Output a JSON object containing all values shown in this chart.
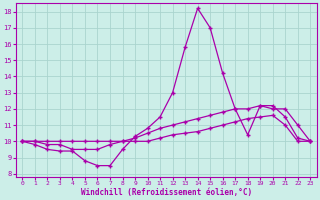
{
  "title": "",
  "xlabel": "Windchill (Refroidissement éolien,°C)",
  "background_color": "#cceee8",
  "grid_color": "#aad4ce",
  "line_color": "#aa00aa",
  "x_ticks": [
    0,
    1,
    2,
    3,
    4,
    5,
    6,
    7,
    8,
    9,
    10,
    11,
    12,
    13,
    14,
    15,
    16,
    17,
    18,
    19,
    20,
    21,
    22,
    23
  ],
  "y_ticks": [
    8,
    9,
    10,
    11,
    12,
    13,
    14,
    15,
    16,
    17,
    18
  ],
  "ylim": [
    7.8,
    18.5
  ],
  "xlim": [
    -0.5,
    23.5
  ],
  "series1_x": [
    0,
    1,
    2,
    3,
    4,
    5,
    6,
    7,
    8,
    9,
    10,
    11,
    12,
    13,
    14,
    15,
    16,
    17,
    18,
    19,
    20,
    21,
    22,
    23
  ],
  "series1_y": [
    10.0,
    9.8,
    9.5,
    9.4,
    9.4,
    8.8,
    8.5,
    8.5,
    9.5,
    10.3,
    10.8,
    11.5,
    13.0,
    15.8,
    18.2,
    17.0,
    14.2,
    12.0,
    10.4,
    12.2,
    12.0,
    12.0,
    11.0,
    10.0
  ],
  "series2_x": [
    0,
    1,
    2,
    3,
    4,
    5,
    6,
    7,
    8,
    9,
    10,
    11,
    12,
    13,
    14,
    15,
    16,
    17,
    18,
    19,
    20,
    21,
    22,
    23
  ],
  "series2_y": [
    10.0,
    10.0,
    9.8,
    9.8,
    9.5,
    9.5,
    9.5,
    9.8,
    10.0,
    10.2,
    10.5,
    10.8,
    11.0,
    11.2,
    11.4,
    11.6,
    11.8,
    12.0,
    12.0,
    12.2,
    12.2,
    11.5,
    10.2,
    10.0
  ],
  "series3_x": [
    0,
    1,
    2,
    3,
    4,
    5,
    6,
    7,
    8,
    9,
    10,
    11,
    12,
    13,
    14,
    15,
    16,
    17,
    18,
    19,
    20,
    21,
    22,
    23
  ],
  "series3_y": [
    10.0,
    10.0,
    10.0,
    10.0,
    10.0,
    10.0,
    10.0,
    10.0,
    10.0,
    10.0,
    10.0,
    10.2,
    10.4,
    10.5,
    10.6,
    10.8,
    11.0,
    11.2,
    11.4,
    11.5,
    11.6,
    11.0,
    10.0,
    10.0
  ]
}
